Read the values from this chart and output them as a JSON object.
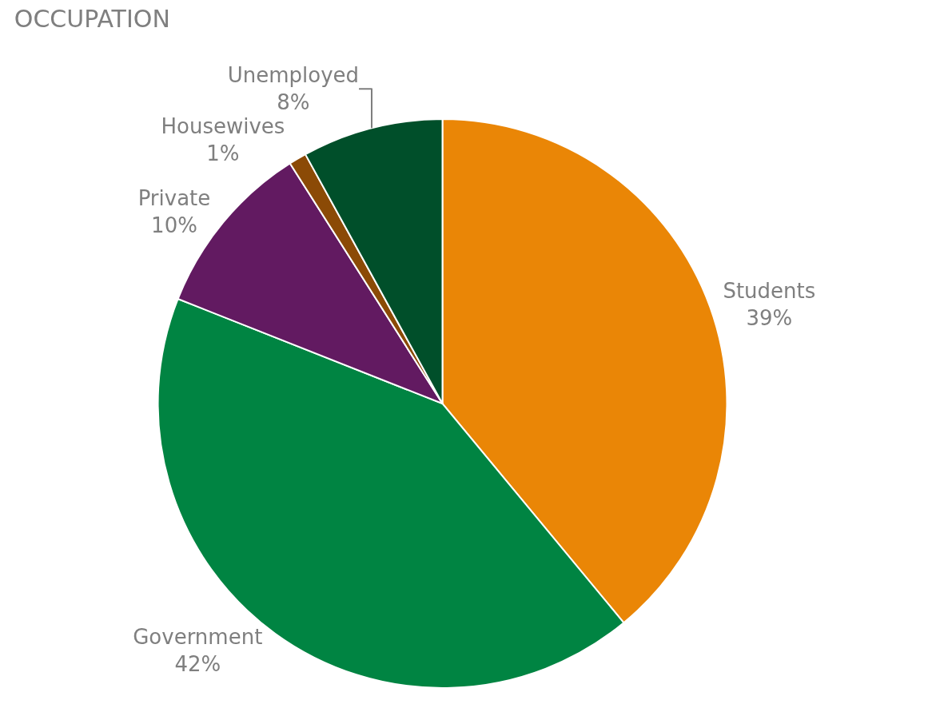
{
  "chart_data": {
    "type": "pie",
    "title": "OCCUPATION",
    "categories": [
      "Students",
      "Government",
      "Private",
      "Housewives",
      "Unemployed"
    ],
    "values": [
      39,
      42,
      10,
      1,
      8
    ],
    "value_labels": [
      "39%",
      "42%",
      "10%",
      "1%",
      "8%"
    ],
    "colors": [
      "#ea8606",
      "#008442",
      "#621a61",
      "#8b4a06",
      "#004f2a"
    ]
  }
}
